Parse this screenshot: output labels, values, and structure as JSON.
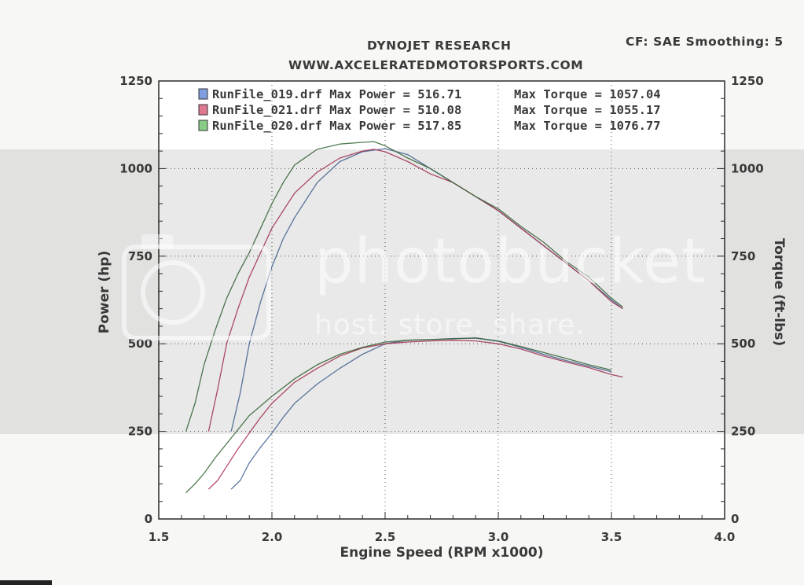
{
  "header": {
    "title": "DYNOJET RESEARCH",
    "subtitle": "WWW.AXCELERATEDMOTORSPORTS.COM",
    "correction": "CF: SAE  Smoothing: 5"
  },
  "watermark": {
    "brand": "photobucket",
    "tagline": "host. store. share."
  },
  "chart_data": {
    "type": "line",
    "title": "DYNOJET RESEARCH",
    "xlabel": "Engine Speed (RPM x1000)",
    "ylabel_left": "Power (hp)",
    "ylabel_right": "Torque (ft-lbs)",
    "xlim": [
      1.5,
      4.0
    ],
    "ylim": [
      0,
      1250
    ],
    "x_ticks": [
      "1.5",
      "2.0",
      "2.5",
      "3.0",
      "3.5",
      "4.0"
    ],
    "y_ticks": [
      "0",
      "250",
      "500",
      "750",
      "1000",
      "1250"
    ],
    "grid": true,
    "legend_position": "top-left",
    "series": [
      {
        "name": "RunFile_019.drf",
        "max_power_label": "Max Power = 516.71",
        "max_torque_label": "Max Torque = 1057.04",
        "color": "#7f9fe0",
        "line_color": "#4c6c9c",
        "power": {
          "x": [
            1.82,
            1.86,
            1.9,
            1.95,
            2.0,
            2.05,
            2.1,
            2.2,
            2.3,
            2.4,
            2.5,
            2.6,
            2.7,
            2.8,
            2.9,
            3.0,
            3.1,
            3.2,
            3.3,
            3.4,
            3.5
          ],
          "y": [
            85,
            110,
            160,
            205,
            245,
            290,
            330,
            385,
            430,
            470,
            500,
            510,
            512,
            515,
            516,
            507,
            490,
            470,
            452,
            436,
            420
          ]
        },
        "torque": {
          "x": [
            1.82,
            1.86,
            1.9,
            1.95,
            2.0,
            2.05,
            2.1,
            2.2,
            2.3,
            2.4,
            2.5,
            2.6,
            2.7,
            2.8,
            2.9,
            3.0,
            3.1,
            3.2,
            3.3,
            3.4,
            3.5,
            3.55
          ],
          "y": [
            250,
            360,
            500,
            620,
            720,
            800,
            860,
            960,
            1020,
            1048,
            1057,
            1040,
            1000,
            960,
            920,
            880,
            830,
            780,
            730,
            680,
            625,
            600
          ]
        }
      },
      {
        "name": "RunFile_021.drf",
        "max_power_label": "Max Power = 510.08",
        "max_torque_label": "Max Torque = 1055.17",
        "color": "#e07890",
        "line_color": "#b03a5a",
        "power": {
          "x": [
            1.72,
            1.76,
            1.8,
            1.85,
            1.9,
            1.95,
            2.0,
            2.1,
            2.2,
            2.3,
            2.4,
            2.5,
            2.6,
            2.7,
            2.8,
            2.9,
            3.0,
            3.1,
            3.2,
            3.3,
            3.4,
            3.5,
            3.55
          ],
          "y": [
            85,
            110,
            150,
            200,
            245,
            290,
            330,
            390,
            430,
            465,
            488,
            500,
            505,
            508,
            510,
            508,
            500,
            485,
            465,
            448,
            432,
            412,
            405
          ]
        },
        "torque": {
          "x": [
            1.72,
            1.76,
            1.8,
            1.85,
            1.9,
            1.95,
            2.0,
            2.05,
            2.1,
            2.2,
            2.3,
            2.4,
            2.45,
            2.5,
            2.6,
            2.7,
            2.8,
            2.9,
            3.0,
            3.1,
            3.2,
            3.3,
            3.4,
            3.5,
            3.55
          ],
          "y": [
            250,
            370,
            500,
            600,
            690,
            760,
            830,
            880,
            930,
            990,
            1030,
            1050,
            1055,
            1048,
            1020,
            985,
            960,
            920,
            880,
            830,
            780,
            730,
            680,
            620,
            600
          ]
        }
      },
      {
        "name": "RunFile_020.drf",
        "max_power_label": "Max Power = 517.85",
        "max_torque_label": "Max Torque = 1076.77",
        "color": "#88cc88",
        "line_color": "#3e6e3e",
        "power": {
          "x": [
            1.62,
            1.66,
            1.7,
            1.75,
            1.8,
            1.85,
            1.9,
            2.0,
            2.1,
            2.2,
            2.3,
            2.4,
            2.5,
            2.6,
            2.7,
            2.8,
            2.9,
            3.0,
            3.1,
            3.2,
            3.3,
            3.4,
            3.5
          ],
          "y": [
            75,
            100,
            130,
            175,
            215,
            255,
            295,
            350,
            400,
            440,
            470,
            490,
            505,
            510,
            512,
            514,
            517,
            508,
            492,
            475,
            458,
            440,
            425
          ]
        },
        "torque": {
          "x": [
            1.62,
            1.66,
            1.7,
            1.75,
            1.8,
            1.85,
            1.9,
            1.95,
            2.0,
            2.05,
            2.1,
            2.2,
            2.3,
            2.4,
            2.45,
            2.5,
            2.6,
            2.7,
            2.8,
            2.9,
            3.0,
            3.1,
            3.2,
            3.3,
            3.4,
            3.5,
            3.55
          ],
          "y": [
            250,
            330,
            440,
            540,
            630,
            700,
            760,
            830,
            900,
            960,
            1010,
            1055,
            1070,
            1075,
            1077,
            1065,
            1030,
            1000,
            960,
            920,
            885,
            835,
            790,
            735,
            690,
            630,
            605
          ]
        }
      }
    ]
  }
}
